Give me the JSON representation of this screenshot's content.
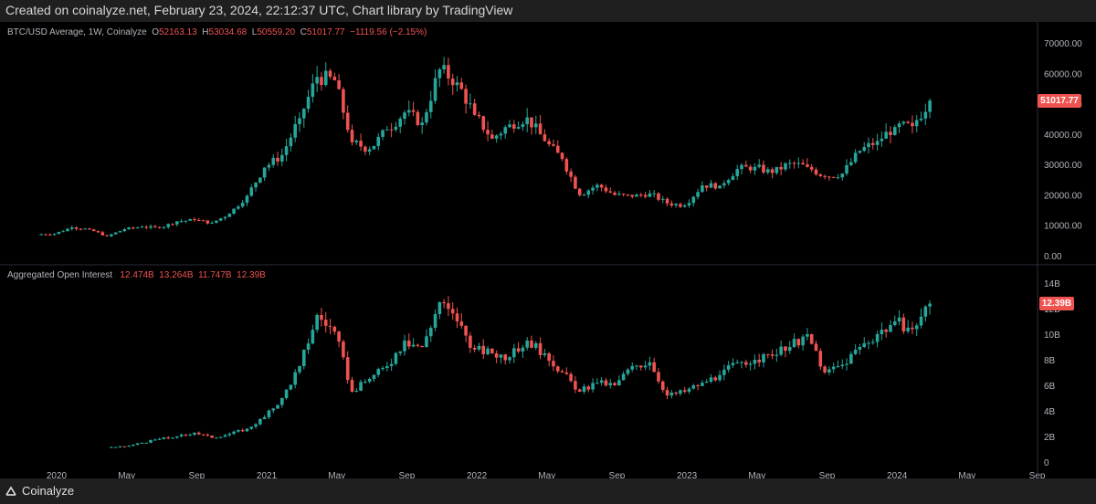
{
  "header": {
    "created_text": "Created on coinalyze.net, February 23, 2024, 22:12:37 UTC, Chart library by TradingView"
  },
  "footer": {
    "brand": "Coinalyze"
  },
  "colors": {
    "up": "#26a69a",
    "down": "#ef5350",
    "background": "#000000",
    "axis_text": "#b2b5be",
    "divider": "#2a2e39"
  },
  "price_panel": {
    "legend": {
      "title": "BTC/USD Average, 1W, Coinalyze",
      "o_label": "O",
      "o_value": "52163.13",
      "h_label": "H",
      "h_value": "53034.68",
      "l_label": "L",
      "l_value": "50559.20",
      "c_label": "C",
      "c_value": "51017.77",
      "change": "−1119.56 (−2.15%)"
    },
    "last_value_tag": "51017.77"
  },
  "oi_panel": {
    "legend": {
      "title": "Aggregated Open Interest",
      "o_value": "12.474B",
      "h_value": "13.264B",
      "l_value": "11.747B",
      "c_value": "12.39B"
    },
    "last_value_tag": "12.39B"
  },
  "chart_data": [
    {
      "type": "candlestick",
      "title": "BTC/USD Average, 1W, Coinalyze",
      "interval": "1W",
      "x_tick_labels": [
        "2020",
        "May",
        "Sep",
        "2021",
        "May",
        "Sep",
        "2022",
        "May",
        "Sep",
        "2023",
        "May",
        "Sep",
        "2024",
        "May",
        "Sep"
      ],
      "y_tick_labels": [
        "0.00",
        "10000.00",
        "20000.00",
        "30000.00",
        "40000.00",
        "50000.00",
        "60000.00",
        "70000.00"
      ],
      "ylim": [
        0,
        72000
      ],
      "x": [
        "2019-12",
        "2020-01",
        "2020-02",
        "2020-03",
        "2020-04",
        "2020-05",
        "2020-06",
        "2020-07",
        "2020-08",
        "2020-09",
        "2020-10",
        "2020-11",
        "2020-12",
        "2021-01",
        "2021-02",
        "2021-03",
        "2021-04",
        "2021-05",
        "2021-06",
        "2021-07",
        "2021-08",
        "2021-09",
        "2021-10",
        "2021-11",
        "2021-12",
        "2022-01",
        "2022-02",
        "2022-03",
        "2022-04",
        "2022-05",
        "2022-06",
        "2022-07",
        "2022-08",
        "2022-09",
        "2022-10",
        "2022-11",
        "2022-12",
        "2023-01",
        "2023-02",
        "2023-03",
        "2023-04",
        "2023-05",
        "2023-06",
        "2023-07",
        "2023-08",
        "2023-09",
        "2023-10",
        "2023-11",
        "2023-12",
        "2024-01",
        "2024-02"
      ],
      "close": [
        7200,
        9300,
        8600,
        6400,
        8700,
        9500,
        9100,
        11300,
        11700,
        10800,
        13800,
        19700,
        29000,
        33100,
        45200,
        58800,
        57700,
        37300,
        35000,
        41500,
        47100,
        43800,
        61300,
        57000,
        46300,
        38500,
        43200,
        45500,
        37700,
        31800,
        19900,
        23300,
        20000,
        19400,
        20500,
        17200,
        16500,
        23100,
        23100,
        28500,
        29200,
        27200,
        30500,
        29200,
        26000,
        27000,
        34500,
        37700,
        42300,
        42600,
        51017
      ],
      "last": {
        "open": 52163.13,
        "high": 53034.68,
        "low": 50559.2,
        "close": 51017.77,
        "change": -1119.56,
        "change_pct": -2.15
      }
    },
    {
      "type": "candlestick",
      "title": "Aggregated Open Interest",
      "unit": "USD (B)",
      "x_tick_labels": [
        "2020",
        "May",
        "Sep",
        "2021",
        "May",
        "Sep",
        "2022",
        "May",
        "Sep",
        "2023",
        "May",
        "Sep",
        "2024",
        "May",
        "Sep"
      ],
      "y_tick_labels": [
        "0",
        "2B",
        "4B",
        "6B",
        "8B",
        "10B",
        "12B",
        "14B"
      ],
      "ylim": [
        0,
        14.5
      ],
      "x": [
        "2020-04",
        "2020-05",
        "2020-06",
        "2020-07",
        "2020-08",
        "2020-09",
        "2020-10",
        "2020-11",
        "2020-12",
        "2021-01",
        "2021-02",
        "2021-03",
        "2021-04",
        "2021-05",
        "2021-06",
        "2021-07",
        "2021-08",
        "2021-09",
        "2021-10",
        "2021-11",
        "2021-12",
        "2022-01",
        "2022-02",
        "2022-03",
        "2022-04",
        "2022-05",
        "2022-06",
        "2022-07",
        "2022-08",
        "2022-09",
        "2022-10",
        "2022-11",
        "2022-12",
        "2023-01",
        "2023-02",
        "2023-03",
        "2023-04",
        "2023-05",
        "2023-06",
        "2023-07",
        "2023-08",
        "2023-09",
        "2023-10",
        "2023-11",
        "2023-12",
        "2024-01",
        "2024-02"
      ],
      "close": [
        1.2,
        1.5,
        1.8,
        2.0,
        2.3,
        1.9,
        2.2,
        2.6,
        3.5,
        5.0,
        7.5,
        11.5,
        10.2,
        5.5,
        6.5,
        7.5,
        9.5,
        9.0,
        12.5,
        11.0,
        8.8,
        8.5,
        8.2,
        9.5,
        8.5,
        7.0,
        5.5,
        6.2,
        6.0,
        7.5,
        7.8,
        5.2,
        5.5,
        6.2,
        6.8,
        7.8,
        8.0,
        8.3,
        9.0,
        10.0,
        7.0,
        7.6,
        9.0,
        10.0,
        11.0,
        10.4,
        12.39
      ],
      "last": {
        "open": 12.474,
        "high": 13.264,
        "low": 11.747,
        "close": 12.39
      }
    }
  ]
}
